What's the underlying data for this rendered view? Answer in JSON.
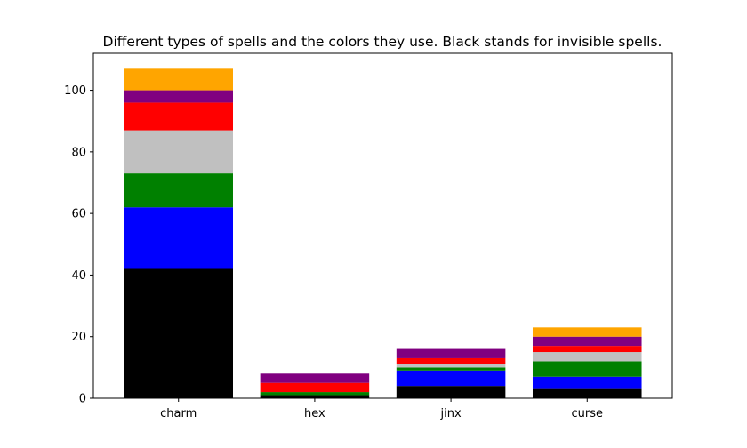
{
  "chart_data": {
    "type": "bar",
    "stacked": true,
    "title": "Different types of spells and the colors they use. Black stands for invisible spells.",
    "xlabel": "",
    "ylabel": "",
    "categories": [
      "charm",
      "hex",
      "jinx",
      "curse"
    ],
    "ylim": [
      0,
      112
    ],
    "yticks": [
      0,
      20,
      40,
      60,
      80,
      100
    ],
    "grid": false,
    "legend": "none",
    "series": [
      {
        "color": "#000000",
        "values": [
          42,
          1,
          4,
          3
        ]
      },
      {
        "color": "#0000ff",
        "values": [
          20,
          0,
          5,
          4
        ]
      },
      {
        "color": "#008000",
        "values": [
          11,
          1,
          1,
          5
        ]
      },
      {
        "color": "#c0c0c0",
        "values": [
          14,
          0,
          1,
          3
        ]
      },
      {
        "color": "#ff0000",
        "values": [
          9,
          3,
          2,
          2
        ]
      },
      {
        "color": "#800080",
        "values": [
          4,
          3,
          3,
          3
        ]
      },
      {
        "color": "#ffa500",
        "values": [
          7,
          0,
          0,
          3
        ]
      }
    ]
  }
}
